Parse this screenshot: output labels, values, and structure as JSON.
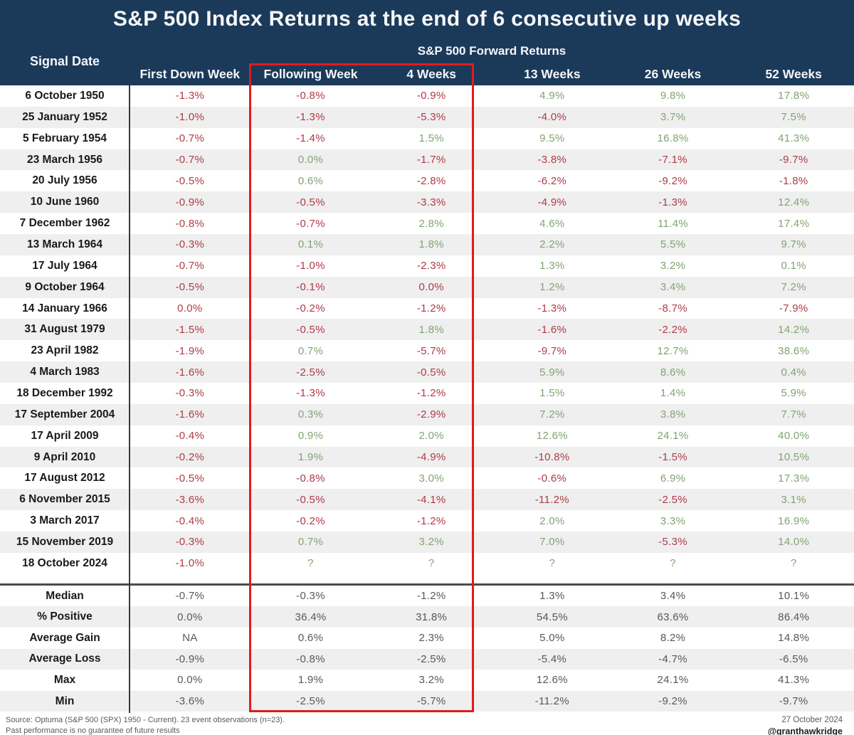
{
  "chart_data": {
    "type": "table",
    "title": "S&P 500 Index Returns at the end of 6 consecutive up weeks",
    "row_header": "Signal Date",
    "group_header": "S&P 500 Forward Returns",
    "columns": [
      "First Down Week",
      "Following Week",
      "4 Weeks",
      "13 Weeks",
      "26 Weeks",
      "52 Weeks"
    ],
    "highlighted_columns": [
      "Following Week",
      "4 Weeks"
    ],
    "rows": [
      {
        "date": "6 October 1950",
        "values": [
          "-1.3%",
          "-0.8%",
          "-0.9%",
          "4.9%",
          "9.8%",
          "17.8%"
        ],
        "sentiment": [
          "n",
          "n",
          "n",
          "p",
          "p",
          "p"
        ]
      },
      {
        "date": "25 January 1952",
        "values": [
          "-1.0%",
          "-1.3%",
          "-5.3%",
          "-4.0%",
          "3.7%",
          "7.5%"
        ],
        "sentiment": [
          "n",
          "n",
          "n",
          "n",
          "p",
          "p"
        ]
      },
      {
        "date": "5 February 1954",
        "values": [
          "-0.7%",
          "-1.4%",
          "1.5%",
          "9.5%",
          "16.8%",
          "41.3%"
        ],
        "sentiment": [
          "n",
          "n",
          "p",
          "p",
          "p",
          "p"
        ]
      },
      {
        "date": "23 March 1956",
        "values": [
          "-0.7%",
          "0.0%",
          "-1.7%",
          "-3.8%",
          "-7.1%",
          "-9.7%"
        ],
        "sentiment": [
          "n",
          "p",
          "n",
          "n",
          "n",
          "n"
        ]
      },
      {
        "date": "20 July 1956",
        "values": [
          "-0.5%",
          "0.6%",
          "-2.8%",
          "-6.2%",
          "-9.2%",
          "-1.8%"
        ],
        "sentiment": [
          "n",
          "p",
          "n",
          "n",
          "n",
          "n"
        ]
      },
      {
        "date": "10 June 1960",
        "values": [
          "-0.9%",
          "-0.5%",
          "-3.3%",
          "-4.9%",
          "-1.3%",
          "12.4%"
        ],
        "sentiment": [
          "n",
          "n",
          "n",
          "n",
          "n",
          "p"
        ]
      },
      {
        "date": "7 December 1962",
        "values": [
          "-0.8%",
          "-0.7%",
          "2.8%",
          "4.6%",
          "11.4%",
          "17.4%"
        ],
        "sentiment": [
          "n",
          "n",
          "p",
          "p",
          "p",
          "p"
        ]
      },
      {
        "date": "13 March 1964",
        "values": [
          "-0.3%",
          "0.1%",
          "1.8%",
          "2.2%",
          "5.5%",
          "9.7%"
        ],
        "sentiment": [
          "n",
          "p",
          "p",
          "p",
          "p",
          "p"
        ]
      },
      {
        "date": "17 July 1964",
        "values": [
          "-0.7%",
          "-1.0%",
          "-2.3%",
          "1.3%",
          "3.2%",
          "0.1%"
        ],
        "sentiment": [
          "n",
          "n",
          "n",
          "p",
          "p",
          "p"
        ]
      },
      {
        "date": "9 October 1964",
        "values": [
          "-0.5%",
          "-0.1%",
          "0.0%",
          "1.2%",
          "3.4%",
          "7.2%"
        ],
        "sentiment": [
          "n",
          "n",
          "n",
          "p",
          "p",
          "p"
        ]
      },
      {
        "date": "14 January 1966",
        "values": [
          "0.0%",
          "-0.2%",
          "-1.2%",
          "-1.3%",
          "-8.7%",
          "-7.9%"
        ],
        "sentiment": [
          "n",
          "n",
          "n",
          "n",
          "n",
          "n"
        ]
      },
      {
        "date": "31 August 1979",
        "values": [
          "-1.5%",
          "-0.5%",
          "1.8%",
          "-1.6%",
          "-2.2%",
          "14.2%"
        ],
        "sentiment": [
          "n",
          "n",
          "p",
          "n",
          "n",
          "p"
        ]
      },
      {
        "date": "23 April 1982",
        "values": [
          "-1.9%",
          "0.7%",
          "-5.7%",
          "-9.7%",
          "12.7%",
          "38.6%"
        ],
        "sentiment": [
          "n",
          "p",
          "n",
          "n",
          "p",
          "p"
        ]
      },
      {
        "date": "4 March 1983",
        "values": [
          "-1.6%",
          "-2.5%",
          "-0.5%",
          "5.9%",
          "8.6%",
          "0.4%"
        ],
        "sentiment": [
          "n",
          "n",
          "n",
          "p",
          "p",
          "p"
        ]
      },
      {
        "date": "18 December 1992",
        "values": [
          "-0.3%",
          "-1.3%",
          "-1.2%",
          "1.5%",
          "1.4%",
          "5.9%"
        ],
        "sentiment": [
          "n",
          "n",
          "n",
          "p",
          "p",
          "p"
        ]
      },
      {
        "date": "17 September 2004",
        "values": [
          "-1.6%",
          "0.3%",
          "-2.9%",
          "7.2%",
          "3.8%",
          "7.7%"
        ],
        "sentiment": [
          "n",
          "p",
          "n",
          "p",
          "p",
          "p"
        ]
      },
      {
        "date": "17 April 2009",
        "values": [
          "-0.4%",
          "0.9%",
          "2.0%",
          "12.6%",
          "24.1%",
          "40.0%"
        ],
        "sentiment": [
          "n",
          "p",
          "p",
          "p",
          "p",
          "p"
        ]
      },
      {
        "date": "9 April 2010",
        "values": [
          "-0.2%",
          "1.9%",
          "-4.9%",
          "-10.8%",
          "-1.5%",
          "10.5%"
        ],
        "sentiment": [
          "n",
          "p",
          "n",
          "n",
          "n",
          "p"
        ]
      },
      {
        "date": "17 August 2012",
        "values": [
          "-0.5%",
          "-0.8%",
          "3.0%",
          "-0.6%",
          "6.9%",
          "17.3%"
        ],
        "sentiment": [
          "n",
          "n",
          "p",
          "n",
          "p",
          "p"
        ]
      },
      {
        "date": "6 November 2015",
        "values": [
          "-3.6%",
          "-0.5%",
          "-4.1%",
          "-11.2%",
          "-2.5%",
          "3.1%"
        ],
        "sentiment": [
          "n",
          "n",
          "n",
          "n",
          "n",
          "p"
        ]
      },
      {
        "date": "3 March 2017",
        "values": [
          "-0.4%",
          "-0.2%",
          "-1.2%",
          "2.0%",
          "3.3%",
          "16.9%"
        ],
        "sentiment": [
          "n",
          "n",
          "n",
          "p",
          "p",
          "p"
        ]
      },
      {
        "date": "15 November 2019",
        "values": [
          "-0.3%",
          "0.7%",
          "3.2%",
          "7.0%",
          "-5.3%",
          "14.0%"
        ],
        "sentiment": [
          "n",
          "p",
          "p",
          "p",
          "n",
          "p"
        ]
      },
      {
        "date": "18 October 2024",
        "values": [
          "-1.0%",
          "?",
          "?",
          "?",
          "?",
          "?"
        ],
        "sentiment": [
          "n",
          "p",
          "p",
          "p",
          "p",
          "p"
        ]
      }
    ],
    "summary": [
      {
        "label": "Median",
        "values": [
          "-0.7%",
          "-0.3%",
          "-1.2%",
          "1.3%",
          "3.4%",
          "10.1%"
        ]
      },
      {
        "label": "% Positive",
        "values": [
          "0.0%",
          "36.4%",
          "31.8%",
          "54.5%",
          "63.6%",
          "86.4%"
        ]
      },
      {
        "label": "Average Gain",
        "values": [
          "NA",
          "0.6%",
          "2.3%",
          "5.0%",
          "8.2%",
          "14.8%"
        ]
      },
      {
        "label": "Average Loss",
        "values": [
          "-0.9%",
          "-0.8%",
          "-2.5%",
          "-5.4%",
          "-4.7%",
          "-6.5%"
        ]
      },
      {
        "label": "Max",
        "values": [
          "0.0%",
          "1.9%",
          "3.2%",
          "12.6%",
          "24.1%",
          "41.3%"
        ]
      },
      {
        "label": "Min",
        "values": [
          "-3.6%",
          "-2.5%",
          "-5.7%",
          "-11.2%",
          "-9.2%",
          "-9.7%"
        ]
      }
    ]
  },
  "colors": {
    "header_bg": "#1b3a5a",
    "positive": "#80a471",
    "negative": "#ae3a46",
    "neutral": "#57585a",
    "highlight_border": "#e11b1e",
    "stripe": "#efefef"
  },
  "footer": {
    "source": "Source: Optuma (S&P 500 (SPX) 1950 - Current). 23 event observations (n=23).",
    "disclaimer": "Past performance is no guarantee of future results",
    "date": "27 October 2024",
    "handle": "@granthawkridge"
  }
}
